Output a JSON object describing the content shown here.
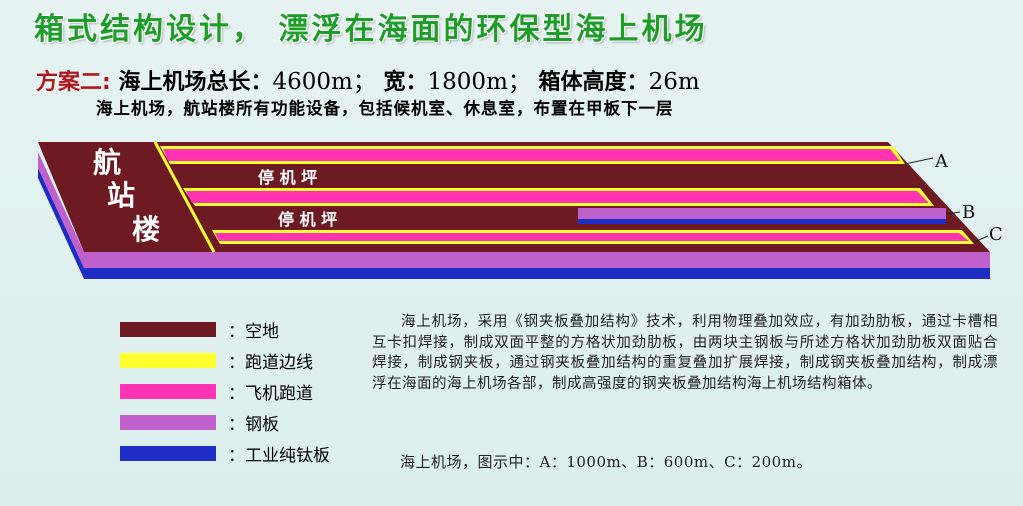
{
  "title": "箱式结构设计，  漂浮在海面的环保型海上机场",
  "subtitle": {
    "plan": "方案二:",
    "length_label": "海上机场总长：",
    "length_value": "4600m；",
    "width_label": "宽：",
    "width_value": "1800m；",
    "height_label": "箱体高度：",
    "height_value": "26m"
  },
  "description": "海上机场，航站楼所有功能设备，包括候机室、休息室，布置在甲板下一层",
  "diagram": {
    "terminal_chars": [
      "航",
      "站",
      "楼"
    ],
    "apron_labels": [
      "停 机 坪",
      "停 机 坪"
    ],
    "markers": [
      "A",
      "B",
      "C"
    ]
  },
  "colors": {
    "open_ground": "#6e1a22",
    "edge_line": "#ffff2e",
    "runway": "#ff33b3",
    "steel_plate": "#c060cc",
    "titanium": "#1e2ec4"
  },
  "legend": [
    {
      "label": "：空地",
      "color": "#6e1a22"
    },
    {
      "label": "：跑道边线",
      "color": "#ffff2e"
    },
    {
      "label": "：飞机跑道",
      "color": "#ff33b3"
    },
    {
      "label": "：钢板",
      "color": "#c060cc"
    },
    {
      "label": "：工业纯钛板",
      "color": "#1e2ec4"
    }
  ],
  "body_text": "海上机场，采用《钢夹板叠加结构》技术，利用物理叠加效应，有加劲肋板，通过卡槽相互卡扣焊接，制成双面平整的方格状加劲肋板，由两块主钢板与所述方格状加劲肋板双面贴合焊接，制成钢夹板，通过钢夹板叠加结构的重复叠加扩展焊接，制成钢夹板叠加结构，制成漂浮在海面的海上机场各部，制成高强度的钢夹板叠加结构海上机场结构箱体。",
  "footnote": "海上机场，图示中：A：1000m、B：600m、C：200m。"
}
